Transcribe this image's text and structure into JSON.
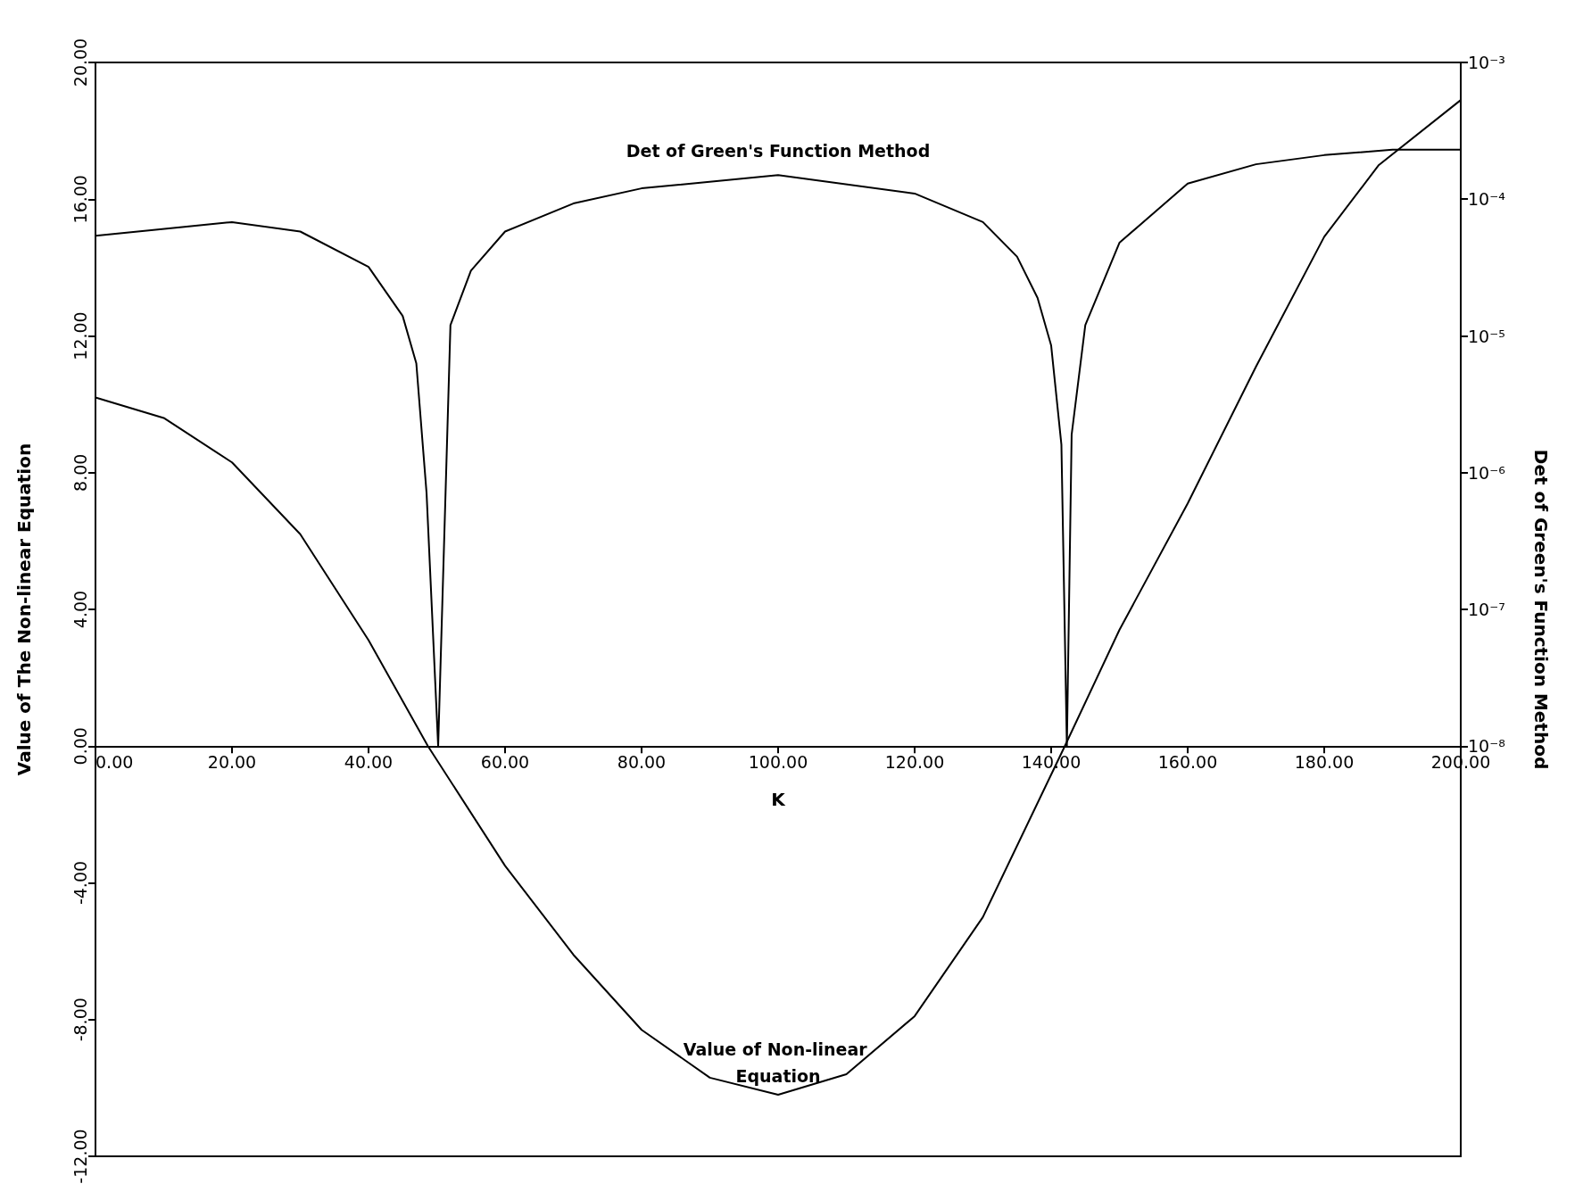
{
  "chart_data": {
    "type": "line",
    "xlabel": "K",
    "ylabel": "Value of The Non-linear Equation",
    "y2label": "Det of Green's Function Method",
    "xlim": [
      0,
      200
    ],
    "xticks": [
      {
        "value": 0,
        "label": "0.00"
      },
      {
        "value": 20,
        "label": "20.00"
      },
      {
        "value": 40,
        "label": "40.00"
      },
      {
        "value": 60,
        "label": "60.00"
      },
      {
        "value": 80,
        "label": "80.00"
      },
      {
        "value": 100,
        "label": "100.00"
      },
      {
        "value": 120,
        "label": "120.00"
      },
      {
        "value": 140,
        "label": "140.00"
      },
      {
        "value": 160,
        "label": "160.00"
      },
      {
        "value": 180,
        "label": "180.00"
      },
      {
        "value": 200,
        "label": "200.00"
      }
    ],
    "ylim": [
      -12,
      20
    ],
    "yticks": [
      {
        "value": -12,
        "label": "-12.00"
      },
      {
        "value": -8,
        "label": "-8.00"
      },
      {
        "value": -4,
        "label": "-4.00"
      },
      {
        "value": 0,
        "label": "0.00"
      },
      {
        "value": 4,
        "label": "4.00"
      },
      {
        "value": 8,
        "label": "8.00"
      },
      {
        "value": 12,
        "label": "12.00"
      },
      {
        "value": 16,
        "label": "16.00"
      },
      {
        "value": 20,
        "label": "20.00"
      }
    ],
    "y2lim": [
      1e-11,
      0.001
    ],
    "y2ticks": [
      {
        "value": 1e-08,
        "label": "10⁻⁸"
      },
      {
        "value": 1e-07,
        "label": "10⁻⁷"
      },
      {
        "value": 1e-06,
        "label": "10⁻⁶"
      },
      {
        "value": 1e-05,
        "label": "10⁻⁵"
      },
      {
        "value": 0.0001,
        "label": "10⁻⁴"
      },
      {
        "value": 0.001,
        "label": "10⁻³"
      }
    ],
    "log": "y2",
    "grid": false,
    "legend": false,
    "marker": "none",
    "line_style": "solid",
    "series": [
      {
        "name": "Det of Green's Function Method",
        "color": "#000000",
        "axis": "y2",
        "x": [
          0,
          20,
          30,
          40,
          45,
          47,
          48.5,
          50.2,
          52,
          55,
          60,
          70,
          80,
          100,
          120,
          130,
          135,
          138,
          140,
          141.5,
          142.3,
          143,
          145,
          150,
          160,
          170,
          180,
          190,
          200
        ],
        "values": [
          5.4e-05,
          6.8e-05,
          5.8e-05,
          3.2e-05,
          1.4e-05,
          6.3e-06,
          7.1e-07,
          1e-08,
          1.2e-05,
          3e-05,
          5.8e-05,
          9.3e-05,
          0.00012,
          0.00015,
          0.00011,
          6.8e-05,
          3.8e-05,
          1.9e-05,
          8.5e-06,
          1.6e-06,
          1e-08,
          1.9e-06,
          1.2e-05,
          4.8e-05,
          0.00013,
          0.00018,
          0.00021,
          0.00023,
          0.00023
        ]
      },
      {
        "name": "Value of Non-linear Equation",
        "color": "#000000",
        "x": [
          0,
          10,
          20,
          30,
          40,
          48.7,
          60,
          70,
          80,
          90,
          100,
          110,
          120,
          130,
          142,
          150,
          160,
          170,
          180,
          188,
          200
        ],
        "values": [
          10.2,
          9.6,
          8.3,
          6.2,
          3.1,
          0,
          -3.5,
          -6.1,
          -8.3,
          -9.7,
          -10.2,
          -9.6,
          -7.9,
          -5,
          0,
          3.4,
          7.1,
          11.1,
          14.9,
          17,
          18.9
        ]
      }
    ]
  }
}
